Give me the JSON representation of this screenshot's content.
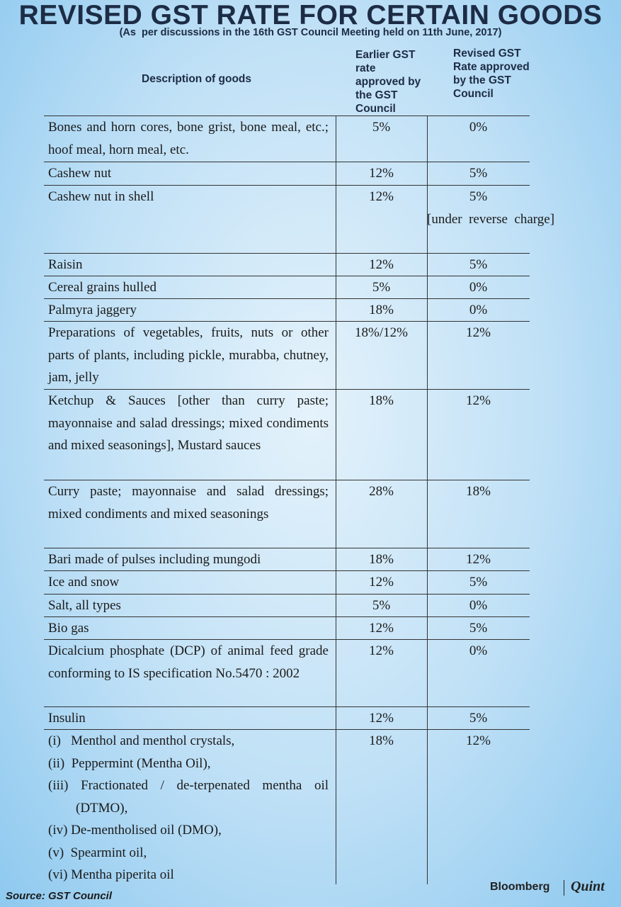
{
  "header": {
    "title": "REVISED GST RATE FOR CERTAIN GOODS",
    "subtitle": "(As  per discussions in the 16th GST Council Meeting held on 11th June, 2017)"
  },
  "table": {
    "columns": [
      "Description of goods",
      "Earlier GST rate approved by the GST Council",
      "Revised GST Rate approved by the GST Council"
    ],
    "rows": [
      {
        "description": "Bones and horn cores, bone grist, bone meal, etc.; hoof meal, horn meal, etc.",
        "earlier": "5%",
        "revised": "0%"
      },
      {
        "description": "Cashew nut",
        "earlier": "12%",
        "revised": "5%"
      },
      {
        "description": "Cashew nut in shell",
        "earlier": "12%",
        "revised": "5%",
        "revised_note": "[under  reverse  charge]"
      },
      {
        "description": "Raisin",
        "earlier": "12%",
        "revised": "5%"
      },
      {
        "description": "Cereal grains hulled",
        "earlier": "5%",
        "revised": "0%"
      },
      {
        "description": "Palmyra jaggery",
        "earlier": "18%",
        "revised": "0%"
      },
      {
        "description": "Preparations of vegetables, fruits, nuts or other parts of plants, including pickle, murabba, chutney, jam, jelly",
        "earlier": "18%/12%",
        "revised": "12%"
      },
      {
        "description": "Ketchup & Sauces [other than curry paste; mayonnaise and salad dressings; mixed condiments and mixed seasonings], Mustard sauces",
        "earlier": "18%",
        "revised": "12%"
      },
      {
        "description": "Curry paste; mayonnaise and salad dressings; mixed condiments and mixed seasonings",
        "earlier": "28%",
        "revised": "18%"
      },
      {
        "description": "Bari made of pulses including mungodi",
        "earlier": "18%",
        "revised": "12%"
      },
      {
        "description": "Ice and snow",
        "earlier": "12%",
        "revised": "5%"
      },
      {
        "description": "Salt, all types",
        "earlier": "5%",
        "revised": "0%"
      },
      {
        "description": "Bio gas",
        "earlier": "12%",
        "revised": "5%"
      },
      {
        "description": "Dicalcium phosphate (DCP) of animal feed grade conforming to IS specification No.5470 : 2002",
        "earlier": "12%",
        "revised": "0%"
      },
      {
        "description": "Insulin",
        "earlier": "12%",
        "revised": "5%"
      },
      {
        "description": [
          "(i)   Menthol and menthol crystals,",
          "(ii)  Peppermint (Mentha Oil),",
          "(iii) Fractionated / de-terpenated mentha oil (DTMO),",
          "(iv) De-mentholised oil (DMO),",
          "(v)  Spearmint oil,",
          "(vi) Mentha piperita oil"
        ],
        "earlier": "18%",
        "revised": "12%"
      }
    ]
  },
  "footer": {
    "source": "Source: GST Council",
    "brand": "Bloomberg",
    "brand_2": "Quint"
  }
}
